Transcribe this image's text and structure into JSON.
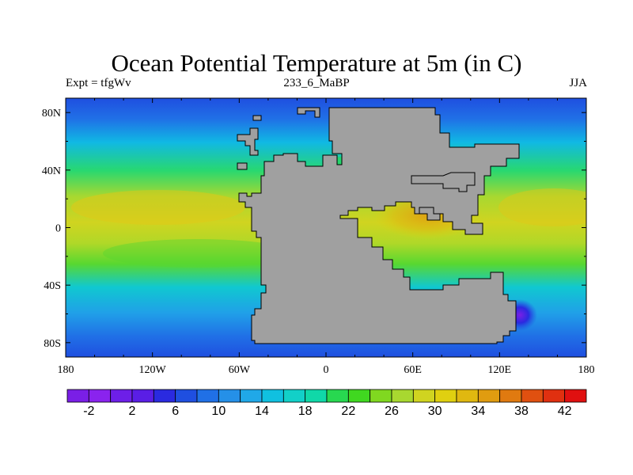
{
  "title": "Ocean Potential Temperature at 5m (in C)",
  "subtitle_left": "Expt = tfgWv",
  "subtitle_center": "233_6_MaBP",
  "subtitle_right": "JJA",
  "colors": {
    "land": "#a0a0a0",
    "frame": "#000000",
    "colorbar": [
      "#7a1fe6",
      "#8a23ee",
      "#6d1fe8",
      "#5a1ee5",
      "#2a2ae0",
      "#1f4fe0",
      "#2070e6",
      "#2590e8",
      "#20a8e8",
      "#10c0e0",
      "#12d0c8",
      "#10d8a8",
      "#28d850",
      "#40d820",
      "#80d820",
      "#a8d830",
      "#d0d420",
      "#e0d010",
      "#e0b810",
      "#e09c10",
      "#e07a10",
      "#e05010",
      "#e03010",
      "#e01010"
    ]
  },
  "chart_data": {
    "type": "heatmap",
    "variable": "Ocean Potential Temperature at 5m (in C)",
    "season": "JJA",
    "lon_range": [
      -180,
      180
    ],
    "lat_range": [
      -90,
      90
    ],
    "x_ticks": [
      "180",
      "120W",
      "60W",
      "0",
      "60E",
      "120E",
      "180"
    ],
    "y_ticks": [
      "80N",
      "40N",
      "0",
      "40S",
      "80S"
    ],
    "colorbar_levels": [
      -2,
      2,
      6,
      10,
      14,
      18,
      22,
      26,
      30,
      34,
      38,
      42
    ],
    "colorbar_labels": [
      "-2",
      "2",
      "6",
      "10",
      "14",
      "18",
      "22",
      "26",
      "30",
      "34",
      "38",
      "42"
    ]
  }
}
